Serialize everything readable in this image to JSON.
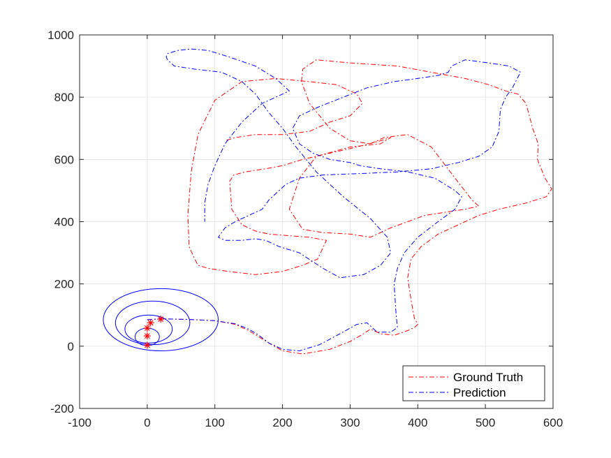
{
  "chart_data": {
    "type": "line",
    "title": "",
    "xlabel": "",
    "ylabel": "",
    "xlim": [
      -100,
      600
    ],
    "ylim": [
      -200,
      1000
    ],
    "x_ticks": [
      "-100",
      "0",
      "100",
      "200",
      "300",
      "400",
      "500",
      "600"
    ],
    "y_ticks": [
      "-200",
      "0",
      "200",
      "400",
      "600",
      "800",
      "1000"
    ],
    "grid": true,
    "legend_position": "bottom-right",
    "series": [
      {
        "name": "Ground Truth",
        "color": "#ff0000",
        "style": "dash-dot",
        "x": [
          0,
          20,
          60,
          100,
          130,
          150,
          165,
          180,
          200,
          230,
          270,
          300,
          320,
          330,
          345,
          365,
          385,
          395,
          400,
          395,
          390,
          385,
          390,
          405,
          430,
          460,
          490,
          520,
          560,
          590,
          598,
          588,
          577,
          578,
          570,
          560,
          548,
          530,
          505,
          470,
          420,
          370,
          300,
          250,
          230,
          228,
          240,
          270,
          300,
          330,
          350,
          385,
          420,
          455,
          480,
          490,
          470,
          440,
          410,
          385,
          360,
          330,
          300,
          260,
          230,
          210,
          225,
          250,
          300,
          345,
          360,
          345,
          310,
          270,
          230,
          200,
          175,
          145,
          128,
          122,
          125,
          140,
          160,
          180,
          210,
          240,
          265,
          252,
          230,
          200,
          160,
          120,
          90,
          75,
          68,
          62,
          60,
          65,
          75,
          100,
          140,
          190,
          240,
          280,
          310,
          318,
          300,
          270,
          240,
          200,
          160,
          130,
          115
        ],
        "y": [
          85,
          88,
          86,
          82,
          70,
          50,
          30,
          10,
          -15,
          -25,
          -10,
          15,
          40,
          55,
          40,
          35,
          50,
          60,
          70,
          90,
          150,
          220,
          280,
          320,
          360,
          390,
          420,
          440,
          460,
          480,
          505,
          540,
          600,
          650,
          700,
          780,
          810,
          820,
          840,
          860,
          880,
          900,
          910,
          920,
          890,
          850,
          780,
          700,
          660,
          650,
          670,
          680,
          640,
          540,
          470,
          450,
          440,
          430,
          420,
          400,
          380,
          350,
          360,
          365,
          375,
          440,
          540,
          610,
          640,
          650,
          670,
          660,
          640,
          620,
          600,
          580,
          570,
          560,
          550,
          530,
          440,
          390,
          370,
          360,
          355,
          350,
          340,
          280,
          260,
          240,
          230,
          240,
          250,
          260,
          290,
          320,
          420,
          560,
          680,
          790,
          850,
          860,
          850,
          840,
          810,
          780,
          740,
          720,
          690,
          680,
          680,
          670,
          660
        ]
      },
      {
        "name": "Prediction",
        "color": "#0000ff",
        "style": "dash-dot",
        "x": [
          0,
          20,
          60,
          100,
          130,
          150,
          165,
          180,
          200,
          225,
          255,
          285,
          310,
          325,
          340,
          360,
          370,
          368,
          365,
          370,
          380,
          400,
          430,
          455,
          465,
          455,
          425,
          385,
          345,
          315,
          300,
          270,
          245,
          225,
          215,
          225,
          255,
          290,
          325,
          365,
          400,
          430,
          445,
          450,
          470,
          505,
          535,
          552,
          547,
          540,
          530,
          522,
          520,
          510,
          490,
          460,
          420,
          370,
          320,
          260,
          225,
          205,
          195,
          180,
          170,
          150,
          130,
          115,
          105,
          115,
          140,
          160,
          175,
          195,
          225,
          260,
          285,
          320,
          345,
          360,
          355,
          330,
          290,
          250,
          220,
          200,
          180,
          160,
          140,
          110,
          70,
          40,
          35,
          30,
          28,
          30,
          45,
          65,
          90,
          120,
          160,
          190,
          210,
          170,
          140,
          115,
          100,
          90,
          85,
          85
        ],
        "y": [
          85,
          88,
          86,
          82,
          72,
          55,
          35,
          10,
          -10,
          -15,
          5,
          40,
          70,
          75,
          45,
          45,
          60,
          100,
          200,
          250,
          300,
          350,
          400,
          440,
          480,
          500,
          540,
          560,
          570,
          580,
          590,
          600,
          620,
          650,
          700,
          740,
          770,
          800,
          830,
          850,
          860,
          870,
          880,
          900,
          920,
          910,
          900,
          880,
          860,
          830,
          800,
          760,
          690,
          640,
          610,
          590,
          570,
          560,
          555,
          550,
          540,
          520,
          500,
          470,
          440,
          420,
          400,
          380,
          350,
          340,
          340,
          345,
          340,
          320,
          300,
          250,
          220,
          230,
          260,
          300,
          350,
          410,
          480,
          560,
          640,
          700,
          750,
          810,
          850,
          880,
          890,
          900,
          910,
          920,
          930,
          940,
          950,
          955,
          950,
          930,
          900,
          860,
          820,
          780,
          720,
          650,
          580,
          520,
          460,
          400
        ]
      }
    ],
    "covariance_ellipses": [
      {
        "cx": 20,
        "cy": 85,
        "rx": 85,
        "ry": 100,
        "color": "#0000ff"
      },
      {
        "cx": 8,
        "cy": 75,
        "rx": 55,
        "ry": 70,
        "color": "#0000ff"
      },
      {
        "cx": 2,
        "cy": 55,
        "rx": 35,
        "ry": 45,
        "color": "#0000ff"
      },
      {
        "cx": 0,
        "cy": 30,
        "rx": 18,
        "ry": 28,
        "color": "#0000ff"
      }
    ],
    "markers": [
      {
        "x": 0,
        "y": 3,
        "symbol": "*",
        "color": "#ff0000"
      },
      {
        "x": 0,
        "y": 33,
        "symbol": "*",
        "color": "#ff0000"
      },
      {
        "x": 0,
        "y": 58,
        "symbol": "*",
        "color": "#ff0000"
      },
      {
        "x": 5,
        "y": 75,
        "symbol": "*",
        "color": "#ff0000"
      },
      {
        "x": 20,
        "y": 87,
        "symbol": "*",
        "color": "#ff0000"
      }
    ]
  }
}
